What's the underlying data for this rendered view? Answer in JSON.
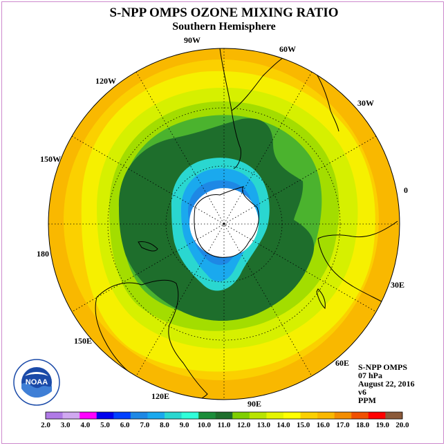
{
  "header": {
    "title": "S-NPP OMPS OZONE MIXING RATIO",
    "subtitle": "Southern Hemisphere"
  },
  "map": {
    "projection": "south-polar-stereographic",
    "bands_from_edge_to_pole": [
      "#f9b800",
      "#fbd000",
      "#f6f000",
      "#d6f000",
      "#a3dd00",
      "#4bb32e",
      "#1e6e2c",
      "#2ad7d0",
      "#1aa9ee",
      "#1e88e5"
    ],
    "pole_fill": "#ffffff",
    "coastline_color": "#000000",
    "grid_line_style": "dotted",
    "longitude_labels": [
      {
        "name": "lon-90w",
        "text": "90W"
      },
      {
        "name": "lon-60w",
        "text": "60W"
      },
      {
        "name": "lon-30w",
        "text": "30W"
      },
      {
        "name": "lon-0",
        "text": "0"
      },
      {
        "name": "lon-30e",
        "text": "30E"
      },
      {
        "name": "lon-60e",
        "text": "60E"
      },
      {
        "name": "lon-90e",
        "text": "90E"
      },
      {
        "name": "lon-120e",
        "text": "120E"
      },
      {
        "name": "lon-150e",
        "text": "150E"
      },
      {
        "name": "lon-180",
        "text": "180"
      },
      {
        "name": "lon-150w",
        "text": "150W"
      },
      {
        "name": "lon-120w",
        "text": "120W"
      }
    ]
  },
  "info": {
    "instrument": "S-NPP OMPS",
    "level": "07 hPa",
    "date": "August 22, 2016",
    "version": "v6",
    "units": "PPM"
  },
  "legend": {
    "ticks": [
      "2.0",
      "3.0",
      "4.0",
      "5.0",
      "6.0",
      "7.0",
      "8.0",
      "9.0",
      "10.0",
      "11.0",
      "12.0",
      "13.0",
      "14.0",
      "15.0",
      "16.0",
      "17.0",
      "18.0",
      "19.0",
      "20.0"
    ],
    "colors": [
      "#b07ae6",
      "#d0a8f0",
      "#ff00ff",
      "#0000ee",
      "#0040ff",
      "#1e88e5",
      "#1aa9ee",
      "#2ad7d0",
      "#30ffd9",
      "#1b8d3a",
      "#1e6e2c",
      "#7fcf00",
      "#b8e400",
      "#e4f400",
      "#ffff00",
      "#fbd000",
      "#f9b800",
      "#f38d00",
      "#f05000",
      "#ff0000",
      "#8b5a3a"
    ]
  },
  "logo": {
    "text": "NOAA"
  }
}
